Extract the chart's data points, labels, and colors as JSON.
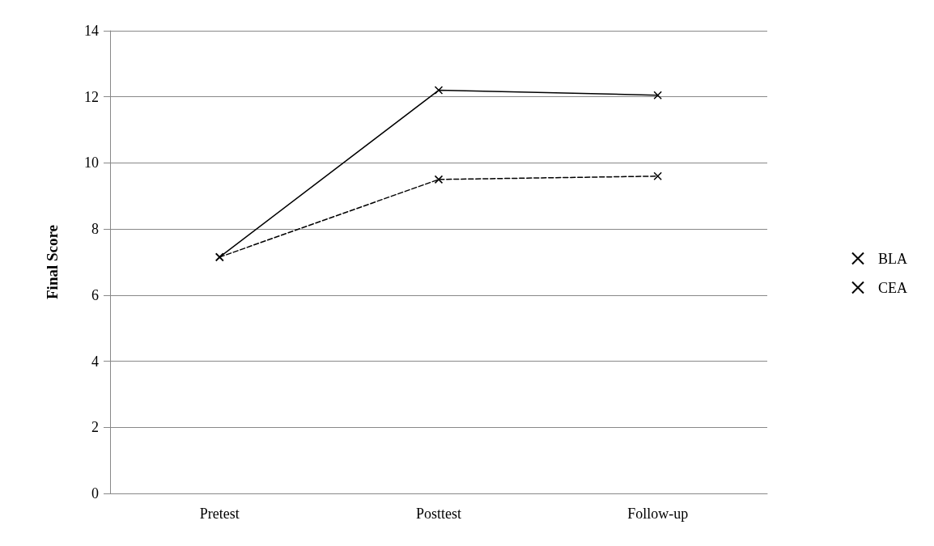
{
  "chart_data": {
    "type": "line",
    "ylabel": "Final Score",
    "categories": [
      "Pretest",
      "Posttest",
      "Follow-up"
    ],
    "series": [
      {
        "name": "BLA",
        "color": "#000000",
        "values": [
          7.15,
          12.2,
          12.05
        ],
        "line_style": "solid"
      },
      {
        "name": "CEA",
        "color": "#000000",
        "values": [
          7.15,
          9.5,
          9.6
        ],
        "line_style": "dashed"
      }
    ],
    "ylim": [
      0,
      14
    ],
    "yticks": [
      0,
      2,
      4,
      6,
      8,
      10,
      12,
      14
    ],
    "grid": "y",
    "legend": "right",
    "marker": "cross"
  }
}
